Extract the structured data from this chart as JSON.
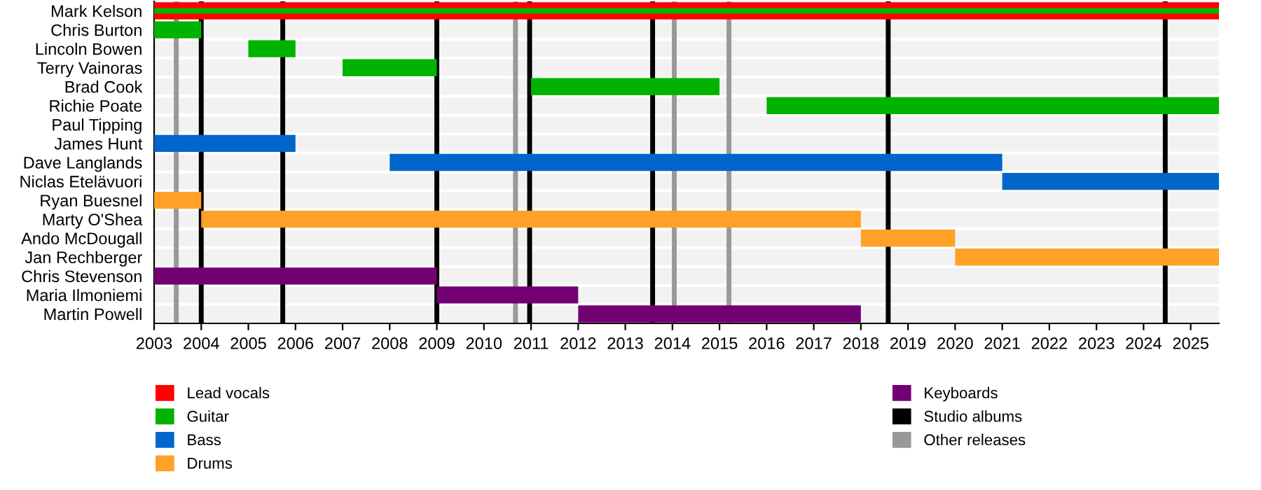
{
  "chart_data": {
    "type": "bar",
    "orientation": "horizontal",
    "categories": [
      "Mark Kelson",
      "Chris Burton",
      "Lincoln Bowen",
      "Terry Vainoras",
      "Brad Cook",
      "Richie Poate",
      "Paul Tipping",
      "James Hunt",
      "Dave Langlands",
      "Niclas Etelävuori",
      "Ryan Buesnel",
      "Marty O'Shea",
      "Ando McDougall",
      "Jan Rechberger",
      "Chris Stevenson",
      "Maria Ilmoniemi",
      "Martin Powell"
    ],
    "series": [
      {
        "name": "Lead vocals",
        "color": "#ff0000",
        "base": [
          2003,
          null,
          null,
          null,
          null,
          null,
          null,
          null,
          null,
          null,
          null,
          null,
          null,
          null,
          null,
          null,
          null
        ],
        "values": [
          22.6,
          null,
          null,
          null,
          null,
          null,
          null,
          null,
          null,
          null,
          null,
          null,
          null,
          null,
          null,
          null,
          null
        ]
      },
      {
        "name": "Guitar",
        "color": "#00b300",
        "base": [
          2003,
          2003,
          2005,
          2007,
          2011,
          2016,
          null,
          null,
          null,
          null,
          null,
          null,
          null,
          null,
          null,
          null,
          null
        ],
        "values": [
          22.6,
          1,
          1,
          2,
          4,
          9.6,
          null,
          null,
          null,
          null,
          null,
          null,
          null,
          null,
          null,
          null,
          null
        ]
      },
      {
        "name": "Bass",
        "color": "#0066cc",
        "base": [
          null,
          null,
          null,
          null,
          null,
          null,
          null,
          2003,
          2008,
          2021,
          null,
          null,
          null,
          null,
          null,
          null,
          null
        ],
        "values": [
          null,
          null,
          null,
          null,
          null,
          null,
          null,
          3,
          13,
          4.6,
          null,
          null,
          null,
          null,
          null,
          null,
          null
        ]
      },
      {
        "name": "Drums",
        "color": "#ffa126",
        "base": [
          null,
          null,
          null,
          null,
          null,
          null,
          null,
          null,
          null,
          null,
          2003,
          2004,
          2018,
          2020,
          null,
          null,
          null
        ],
        "values": [
          null,
          null,
          null,
          null,
          null,
          null,
          null,
          null,
          null,
          null,
          1,
          14,
          2,
          5.6,
          null,
          null,
          null
        ]
      },
      {
        "name": "Keyboards",
        "color": "#730073",
        "base": [
          null,
          null,
          null,
          null,
          null,
          null,
          null,
          null,
          null,
          null,
          null,
          null,
          null,
          null,
          2003,
          2009,
          2012
        ],
        "values": [
          null,
          null,
          null,
          null,
          null,
          null,
          null,
          null,
          null,
          null,
          null,
          null,
          null,
          null,
          6,
          3,
          6
        ]
      }
    ],
    "ref_lines": [
      {
        "axis": "x",
        "value": 2004.0,
        "label": "Studio albums",
        "color": "#000000"
      },
      {
        "axis": "x",
        "value": 2005.73,
        "color": "#000000"
      },
      {
        "axis": "x",
        "value": 2009.0,
        "color": "#000000"
      },
      {
        "axis": "x",
        "value": 2010.97,
        "color": "#000000"
      },
      {
        "axis": "x",
        "value": 2013.58,
        "color": "#000000"
      },
      {
        "axis": "x",
        "value": 2018.58,
        "color": "#000000"
      },
      {
        "axis": "x",
        "value": 2024.46,
        "color": "#000000"
      },
      {
        "axis": "x",
        "value": 2003.47,
        "label": "Other releases",
        "color": "#999999"
      },
      {
        "axis": "x",
        "value": 2010.67,
        "color": "#999999"
      },
      {
        "axis": "x",
        "value": 2014.04,
        "color": "#999999"
      },
      {
        "axis": "x",
        "value": 2015.2,
        "color": "#999999"
      }
    ],
    "xlim": [
      2003,
      2025.6
    ],
    "xticks": [
      2003,
      2004,
      2005,
      2006,
      2007,
      2008,
      2009,
      2010,
      2011,
      2012,
      2013,
      2014,
      2015,
      2016,
      2017,
      2018,
      2019,
      2020,
      2021,
      2022,
      2023,
      2024,
      2025
    ],
    "grid": "y",
    "legend": "bottom"
  }
}
